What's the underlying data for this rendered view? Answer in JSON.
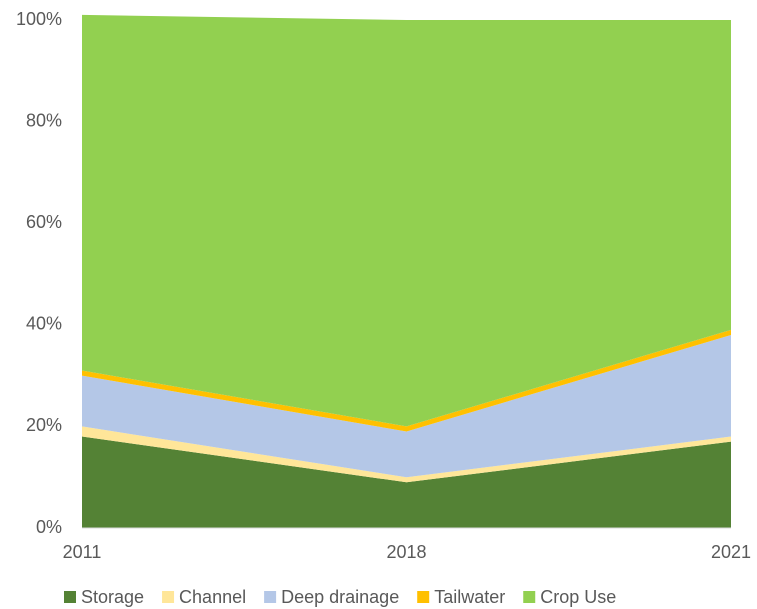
{
  "chart_data": {
    "type": "stacked_area",
    "categories": [
      "2011",
      "2018",
      "2021"
    ],
    "series": [
      {
        "name": "Storage",
        "color": "#548235",
        "values": [
          18,
          9,
          17
        ]
      },
      {
        "name": "Channel",
        "color": "#ffe699",
        "values": [
          2,
          1,
          1
        ]
      },
      {
        "name": "Deep drainage",
        "color": "#b4c7e7",
        "values": [
          10,
          9,
          20
        ]
      },
      {
        "name": "Tailwater",
        "color": "#ffc000",
        "values": [
          1,
          1,
          1
        ]
      },
      {
        "name": "Crop Use",
        "color": "#92d050",
        "values": [
          70,
          80,
          61
        ]
      }
    ],
    "ylim": [
      0,
      100
    ],
    "yticks": [
      {
        "value": 0,
        "label": "0%"
      },
      {
        "value": 20,
        "label": "20%"
      },
      {
        "value": 40,
        "label": "40%"
      },
      {
        "value": 60,
        "label": "60%"
      },
      {
        "value": 80,
        "label": "80%"
      },
      {
        "value": 100,
        "label": "100%"
      }
    ],
    "grid": false,
    "legend": "bottom"
  }
}
